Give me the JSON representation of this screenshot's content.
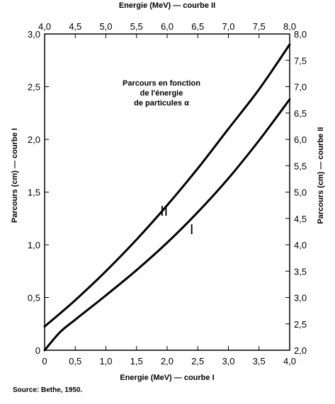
{
  "chart_data": {
    "type": "line",
    "title_lines": [
      "Parcours en fonction",
      "de l'énergie",
      "de particules α"
    ],
    "source": "Source: Bethe, 1950.",
    "axes": {
      "bottom": {
        "label": "Energie (MeV) — courbe I",
        "range": [
          0,
          4
        ],
        "ticks": [
          "0",
          "0,5",
          "1,0",
          "1,5",
          "2,0",
          "2,5",
          "3,0",
          "3,5",
          "4,0"
        ],
        "tick_values": [
          0,
          0.5,
          1,
          1.5,
          2,
          2.5,
          3,
          3.5,
          4
        ]
      },
      "top": {
        "label": "Energie (MeV) — courbe II",
        "range": [
          4,
          8
        ],
        "ticks": [
          "4,0",
          "4,5",
          "5,0",
          "5,5",
          "6,0",
          "6,5",
          "7,0",
          "7,5",
          "8,0"
        ],
        "tick_values": [
          4,
          4.5,
          5,
          5.5,
          6,
          6.5,
          7,
          7.5,
          8
        ]
      },
      "left": {
        "label": "Parcours (cm) — courbe I",
        "range": [
          0,
          3
        ],
        "ticks": [
          "0",
          "0,5",
          "1,0",
          "1,5",
          "2,0",
          "2,5",
          "3,0"
        ],
        "tick_values": [
          0,
          0.5,
          1,
          1.5,
          2,
          2.5,
          3
        ]
      },
      "right": {
        "label": "Parcours (cm) — courbe II",
        "range": [
          2,
          8
        ],
        "ticks": [
          "2,0",
          "2,5",
          "3,0",
          "3,5",
          "4,0",
          "4,5",
          "5,0",
          "5,5",
          "6,0",
          "6,5",
          "7,0",
          "7,5",
          "8,0"
        ],
        "tick_values": [
          2,
          2.5,
          3,
          3.5,
          4,
          4.5,
          5,
          5.5,
          6,
          6.5,
          7,
          7.5,
          8
        ]
      }
    },
    "series": [
      {
        "name": "I",
        "x_axis": "bottom",
        "y_axis": "left",
        "x": [
          0,
          0.25,
          0.5,
          1.0,
          1.5,
          2.0,
          2.5,
          3.0,
          3.5,
          4.0
        ],
        "y": [
          0,
          0.17,
          0.29,
          0.52,
          0.76,
          1.02,
          1.31,
          1.63,
          1.99,
          2.38
        ],
        "label_at": [
          2.4,
          1.1
        ]
      },
      {
        "name": "II",
        "x_axis": "top",
        "y_axis": "right",
        "x": [
          4.0,
          4.5,
          5.0,
          5.5,
          6.0,
          6.5,
          7.0,
          7.5,
          8.0
        ],
        "y": [
          2.45,
          2.95,
          3.5,
          4.1,
          4.75,
          5.45,
          6.2,
          6.95,
          7.8
        ],
        "label_at": [
          5.95,
          4.55
        ]
      }
    ]
  }
}
